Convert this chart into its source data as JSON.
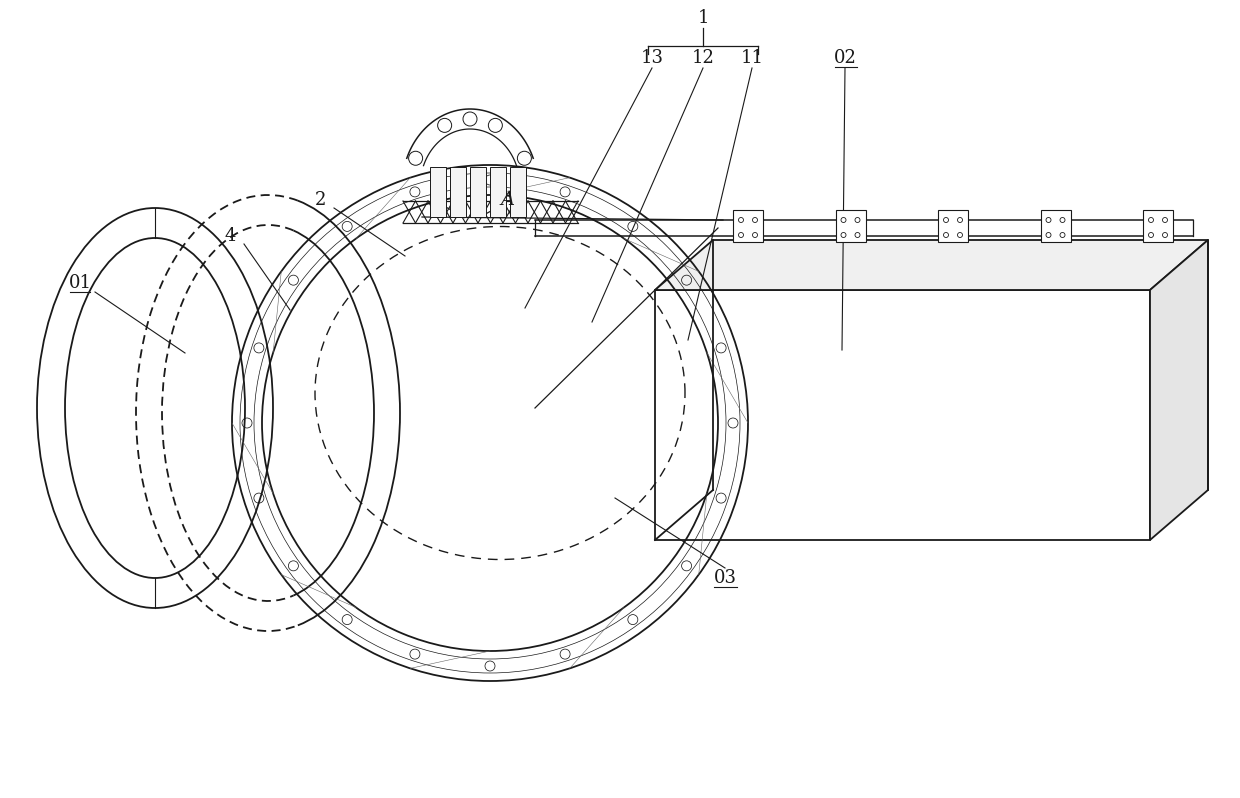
{
  "bg_color": "#ffffff",
  "lc": "#1a1a1a",
  "fig_width": 12.4,
  "fig_height": 7.98,
  "dpi": 100
}
